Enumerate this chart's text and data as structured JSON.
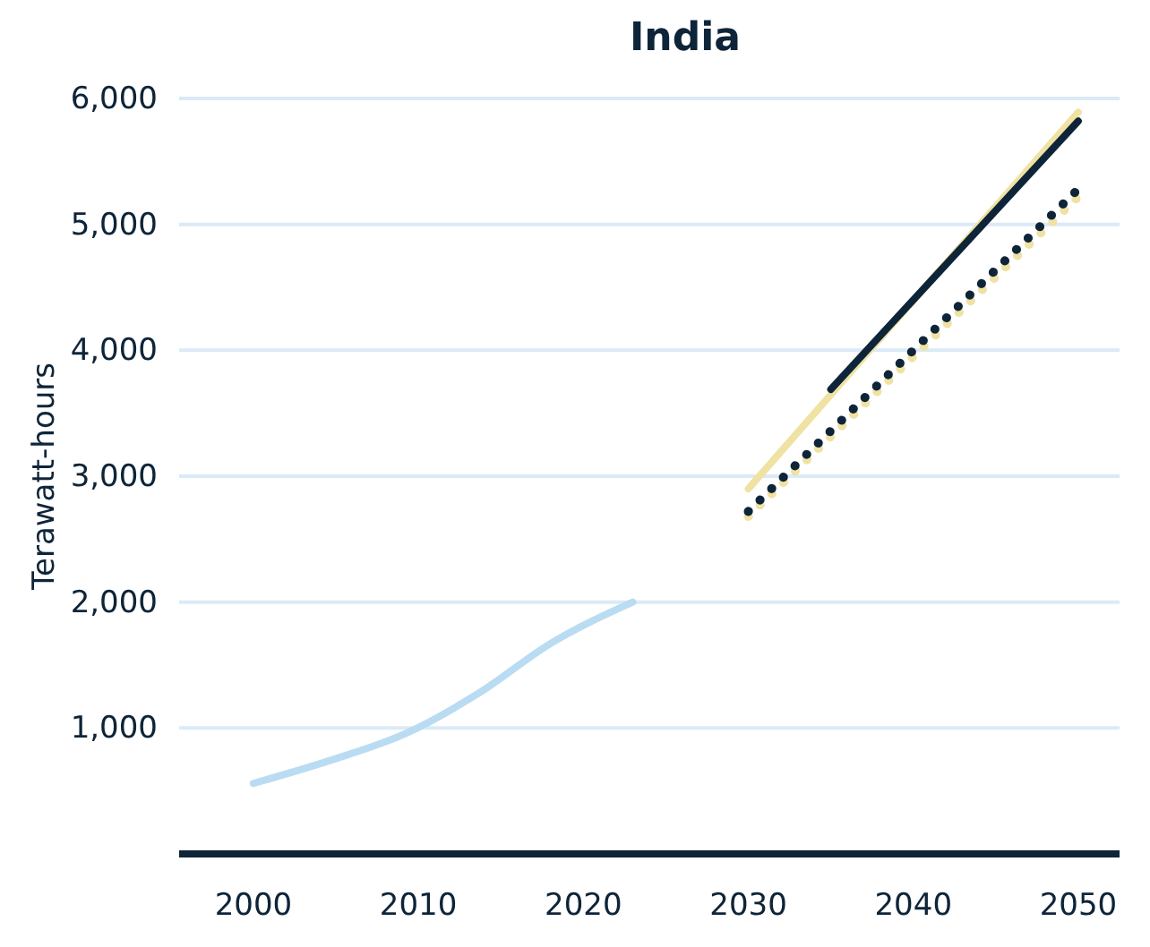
{
  "chart_data": {
    "type": "line",
    "title": "India",
    "ylabel": "Terawatt-hours",
    "xlim": [
      1995.5,
      2052.5
    ],
    "xticks": [
      2000,
      2010,
      2020,
      2030,
      2040,
      2050
    ],
    "ylim": [
      0,
      6000
    ],
    "yticks": [
      {
        "value": 1000,
        "label": "1,000"
      },
      {
        "value": 2000,
        "label": "2,000"
      },
      {
        "value": 3000,
        "label": "3,000"
      },
      {
        "value": 4000,
        "label": "4,000"
      },
      {
        "value": 5000,
        "label": "5,000"
      },
      {
        "value": 6000,
        "label": "6,000"
      }
    ],
    "grid": "y",
    "marker": "none",
    "series": [
      {
        "color": "#b9dcf2",
        "line_style": "solid",
        "x": [
          2000,
          2004.6,
          2009.3,
          2013.7,
          2018,
          2023
        ],
        "values": [
          560,
          740,
          960,
          1280,
          1670,
          2000
        ]
      },
      {
        "color": "#efe2a2",
        "line_style": "solid",
        "x": [
          2030,
          2050
        ],
        "values": [
          2900,
          5890
        ]
      },
      {
        "color": "#0e2438",
        "line_style": "solid",
        "x": [
          2035,
          2050
        ],
        "values": [
          3690,
          5820
        ]
      },
      {
        "color": "#efe2a2",
        "line_style": "dotted",
        "x": [
          2030,
          2050
        ],
        "values": [
          2680,
          5220
        ]
      },
      {
        "color": "#0e2438",
        "line_style": "dotted",
        "x": [
          2030,
          2050
        ],
        "values": [
          2720,
          5280
        ]
      }
    ]
  }
}
